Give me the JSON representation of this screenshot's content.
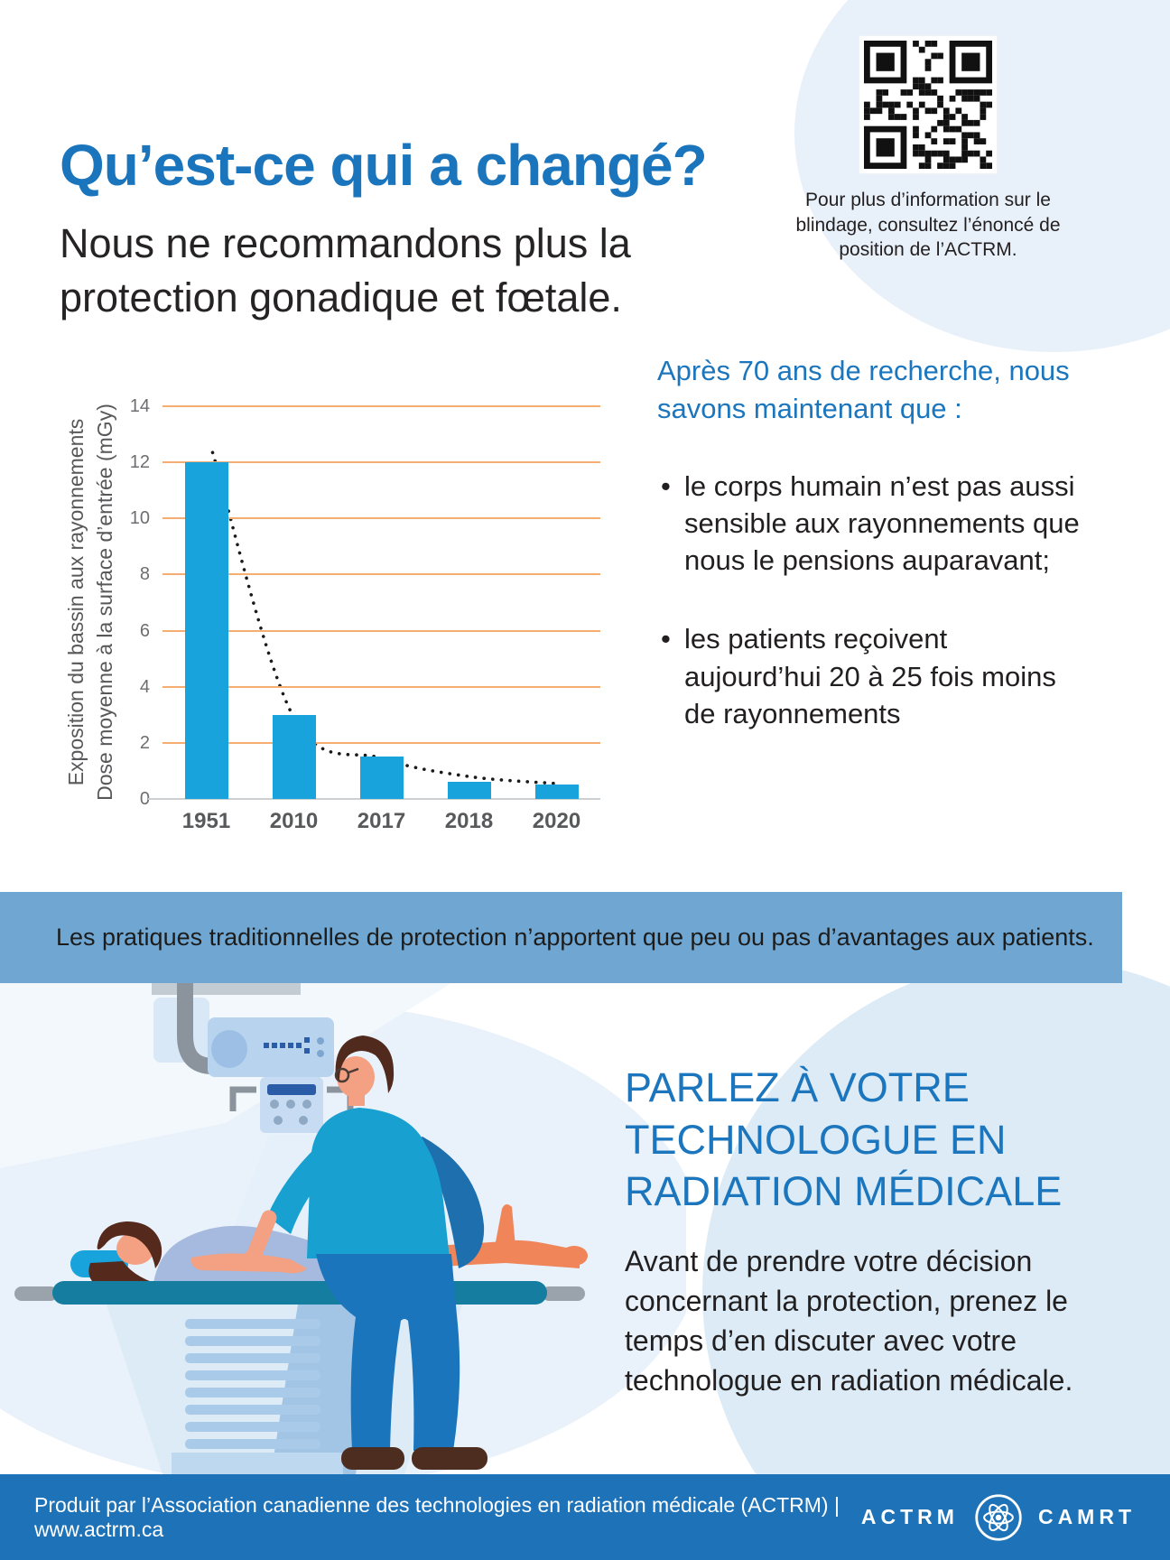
{
  "header": {
    "title": "Qu’est-ce qui a changé?",
    "subtitle": "Nous ne recommandons plus la protection gonadique et fœtale.",
    "qr_caption": "Pour plus d’information sur le blindage, consultez l’énoncé de position de l’ACTRM."
  },
  "chart_data": {
    "type": "bar",
    "categories": [
      "1951",
      "2010",
      "2017",
      "2018",
      "2020"
    ],
    "values": [
      12,
      3,
      1.5,
      0.6,
      0.5
    ],
    "trend": [
      12.35,
      2.9,
      1.45,
      0.8,
      0.55
    ],
    "trend_style": "dotted",
    "title": "",
    "xlabel": "",
    "ylabel_line1": "Exposition du bassin aux rayonnements",
    "ylabel_line2": "Dose moyenne à la surface d’entrée (mGy)",
    "ylim": [
      0,
      14
    ],
    "ytick_step": 2,
    "grid": true,
    "legend": "none",
    "bar_color": "#19a3dd",
    "grid_color": "#f5ad72",
    "trend_color": "#1a1a1a"
  },
  "findings": {
    "heading": "Après 70 ans de recherche, nous savons maintenant que :",
    "bullets": [
      "le corps humain n’est pas aussi sensible aux rayonnements que nous le pensions auparavant;",
      "les patients reçoivent aujourd’hui 20 à 25 fois moins de rayonnements"
    ]
  },
  "banner": {
    "text": "Les pratiques traditionnelles de protection n’apportent que peu ou pas d’avantages aux patients."
  },
  "cta": {
    "heading_lines": [
      "PARLEZ À VOTRE",
      "TECHNOLOGUE EN",
      "RADIATION MÉDICALE"
    ],
    "body": "Avant de prendre votre décision concernant la protection, prenez le temps d’en discuter avec votre technologue en radiation médicale."
  },
  "illustration": {
    "description": "Un technologue en radiation médicale positionne une patiente allongée sur une table de radiographie sous un appareil à rayons X suspendu.",
    "parts": [
      "xray-machine",
      "patient",
      "exam-table",
      "table-pedestal",
      "technologist"
    ]
  },
  "footer": {
    "text": "Produit par l’Association canadienne des technologies en radiation médicale (ACTRM) | www.actrm.ca",
    "logo_left": "ACTRM",
    "logo_right": "CAMRT"
  },
  "colors": {
    "accent_blue": "#1b75bc",
    "bar_blue": "#19a3dd",
    "banner_blue": "#6fa7d2",
    "footer_blue": "#1d72b8",
    "grid_orange": "#f5ad72",
    "blob_light": "#e8f1f9",
    "circle_light": "#dcebf6"
  }
}
